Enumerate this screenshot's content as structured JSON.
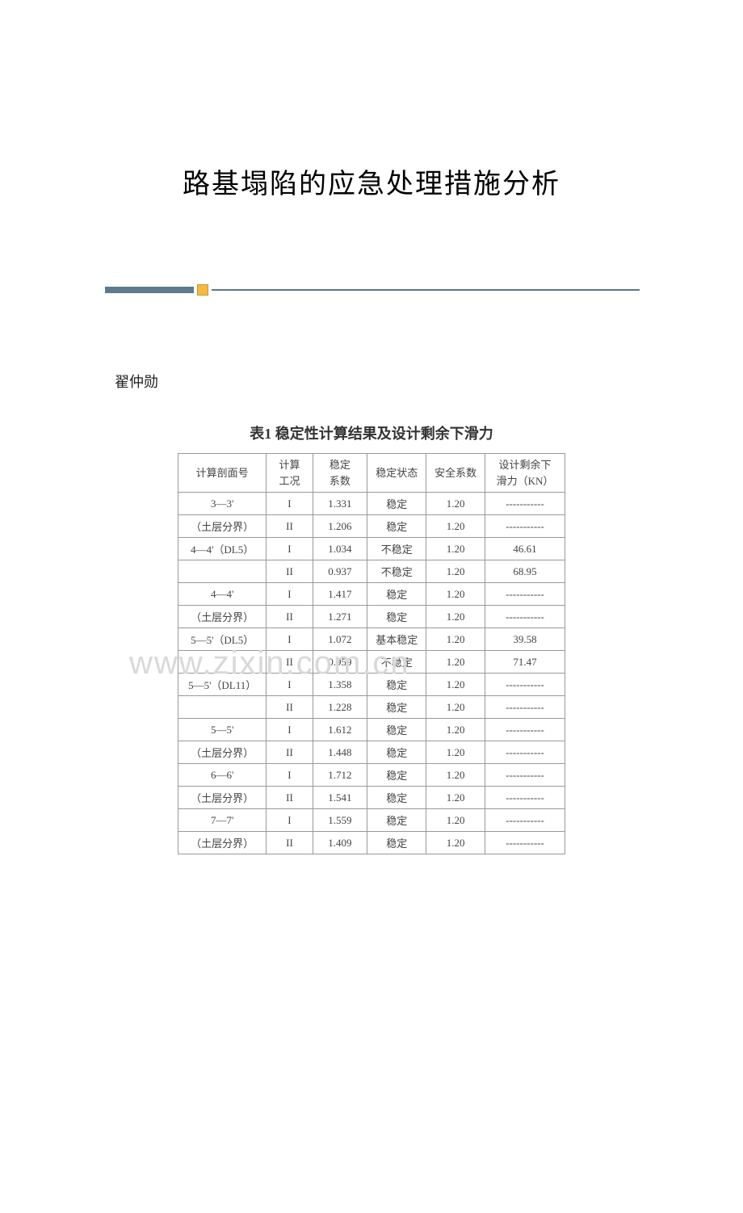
{
  "title": "路基塌陷的应急处理措施分析",
  "author": "翟仲勋",
  "watermark": "www.zixin.com.cn",
  "divider": {
    "left_color": "#5b7a8c",
    "icon_color": "#f4b942",
    "right_color": "#5b7a8c"
  },
  "table": {
    "title": "表1  稳定性计算结果及设计剩余下滑力",
    "title_fontsize": 18,
    "border_color": "#999999",
    "text_color": "#444444",
    "font_size": 13,
    "columns": [
      {
        "label_line1": "计算剖面号",
        "label_line2": ""
      },
      {
        "label_line1": "计算",
        "label_line2": "工况"
      },
      {
        "label_line1": "稳定",
        "label_line2": "系数"
      },
      {
        "label_line1": "稳定状态",
        "label_line2": ""
      },
      {
        "label_line1": "安全系数",
        "label_line2": ""
      },
      {
        "label_line1": "设计剩余下",
        "label_line2": "滑力（KN）"
      }
    ],
    "rows": [
      {
        "profile": "3—3'",
        "cond": "I",
        "coef": "1.331",
        "state": "稳定",
        "safety": "1.20",
        "residual": "-----------"
      },
      {
        "profile": "（土层分界）",
        "cond": "II",
        "coef": "1.206",
        "state": "稳定",
        "safety": "1.20",
        "residual": "-----------"
      },
      {
        "profile": "4—4'（DL5）",
        "cond": "I",
        "coef": "1.034",
        "state": "不稳定",
        "safety": "1.20",
        "residual": "46.61"
      },
      {
        "profile": "",
        "cond": "II",
        "coef": "0.937",
        "state": "不稳定",
        "safety": "1.20",
        "residual": "68.95"
      },
      {
        "profile": "4—4'",
        "cond": "I",
        "coef": "1.417",
        "state": "稳定",
        "safety": "1.20",
        "residual": "-----------"
      },
      {
        "profile": "（土层分界）",
        "cond": "II",
        "coef": "1.271",
        "state": "稳定",
        "safety": "1.20",
        "residual": "-----------"
      },
      {
        "profile": "5—5'（DL5）",
        "cond": "I",
        "coef": "1.072",
        "state": "基本稳定",
        "safety": "1.20",
        "residual": "39.58"
      },
      {
        "profile": "",
        "cond": "II",
        "coef": "0.959",
        "state": "不稳定",
        "safety": "1.20",
        "residual": "71.47"
      },
      {
        "profile": "5—5'（DL11）",
        "cond": "I",
        "coef": "1.358",
        "state": "稳定",
        "safety": "1.20",
        "residual": "-----------"
      },
      {
        "profile": "",
        "cond": "II",
        "coef": "1.228",
        "state": "稳定",
        "safety": "1.20",
        "residual": "-----------"
      },
      {
        "profile": "5—5'",
        "cond": "I",
        "coef": "1.612",
        "state": "稳定",
        "safety": "1.20",
        "residual": "-----------"
      },
      {
        "profile": "（土层分界）",
        "cond": "II",
        "coef": "1.448",
        "state": "稳定",
        "safety": "1.20",
        "residual": "-----------"
      },
      {
        "profile": "6—6'",
        "cond": "I",
        "coef": "1.712",
        "state": "稳定",
        "safety": "1.20",
        "residual": "-----------"
      },
      {
        "profile": "（土层分界）",
        "cond": "II",
        "coef": "1.541",
        "state": "稳定",
        "safety": "1.20",
        "residual": "-----------"
      },
      {
        "profile": "7—7'",
        "cond": "I",
        "coef": "1.559",
        "state": "稳定",
        "safety": "1.20",
        "residual": "-----------"
      },
      {
        "profile": "（土层分界）",
        "cond": "II",
        "coef": "1.409",
        "state": "稳定",
        "safety": "1.20",
        "residual": "-----------"
      }
    ]
  }
}
